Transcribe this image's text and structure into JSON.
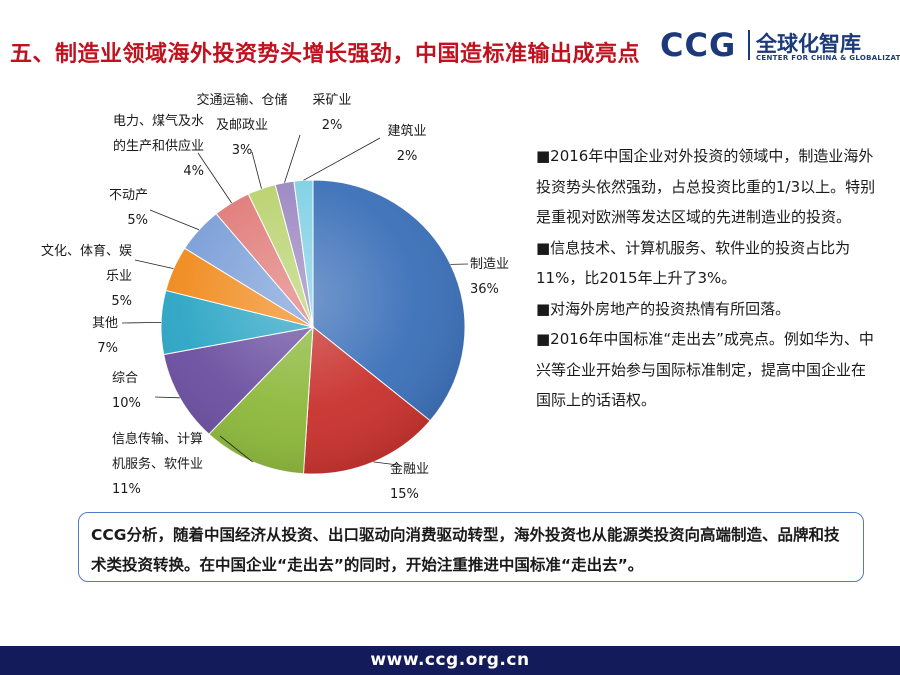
{
  "page": {
    "title": "五、制造业领域海外投资势头增长强劲，中国造标准输出成亮点",
    "footer_url": "www.ccg.org.cn"
  },
  "logo": {
    "mark": "CCG",
    "cn_name": "全球化智库",
    "en_name": "CENTER FOR CHINA & GLOBALIZATION"
  },
  "chart_data": {
    "type": "pie",
    "slices": [
      {
        "name": "制造业",
        "value": 36,
        "label": "36%",
        "color": "#3a6fb8"
      },
      {
        "name": "金融业",
        "value": 15,
        "label": "15%",
        "color": "#c8302c"
      },
      {
        "name": "信息传输、计算机服务、软件业",
        "value": 11,
        "label": "11%",
        "color": "#8cb83a"
      },
      {
        "name": "综合",
        "value": 10,
        "label": "10%",
        "color": "#6a4ea0"
      },
      {
        "name": "其他",
        "value": 7,
        "label": "7%",
        "color": "#2aa5c4"
      },
      {
        "name": "文化、体育、娱乐业",
        "value": 5,
        "label": "5%",
        "color": "#f08a1c"
      },
      {
        "name": "不动产",
        "value": 5,
        "label": "5%",
        "color": "#7a9ed8"
      },
      {
        "name": "电力、煤气及水的生产和供应业",
        "value": 4,
        "label": "4%",
        "color": "#e07a78"
      },
      {
        "name": "交通运输、仓储及邮政业",
        "value": 3,
        "label": "3%",
        "color": "#b8d26e"
      },
      {
        "name": "采矿业",
        "value": 2,
        "label": "2%",
        "color": "#9a86c0"
      },
      {
        "name": "建筑业",
        "value": 2,
        "label": "2%",
        "color": "#7fd0e4"
      }
    ],
    "label_lines": [
      [
        "制造业",
        "36%"
      ],
      [
        "金融业",
        "15%"
      ],
      [
        "信息传输、计算",
        "机服务、软件业",
        "11%"
      ],
      [
        "综合",
        "10%"
      ],
      [
        "其他",
        "7%"
      ],
      [
        "文化、体育、娱",
        "乐业",
        "5%"
      ],
      [
        "不动产",
        "5%"
      ],
      [
        "电力、煤气及水",
        "的生产和供应业",
        "4%"
      ],
      [
        "交通运输、仓储",
        "及邮政业",
        "3%"
      ],
      [
        "采矿业",
        "2%"
      ],
      [
        "建筑业",
        "2%"
      ]
    ]
  },
  "bullets": [
    "■2016年中国企业对外投资的领域中，制造业海外投资势头依然强劲，占总投资比重的1/3以上。特别是重视对欧洲等发达区域的先进制造业的投资。",
    "■信息技术、计算机服务、软件业的投资占比为11%，比2015年上升了3%。",
    "■对海外房地产的投资热情有所回落。",
    "■2016年中国标准“走出去”成亮点。例如华为、中兴等企业开始参与国际标准制定，提高中国企业在国际上的话语权。"
  ],
  "analysis": "CCG分析，随着中国经济从投资、出口驱动向消费驱动转型，海外投资也从能源类投资向高端制造、品牌和技术类投资转换。在中国企业“走出去”的同时，开始注重推进中国标准“走出去”。"
}
